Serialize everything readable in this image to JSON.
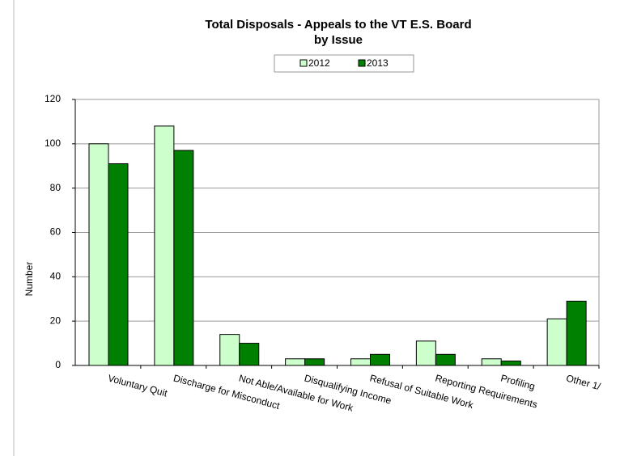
{
  "chart_data": {
    "type": "bar",
    "title": "Total Disposals -  Appeals to the VT E.S. Board",
    "subtitle": "by Issue",
    "y_label": "Number",
    "categories": [
      "Voluntary Quit",
      "Discharge for Misconduct",
      "Not Able/Available for Work",
      "Disqualifying Income",
      "Refusal of Suitable Work",
      "Reporting Requirements",
      "Profiling",
      "Other 1/"
    ],
    "series": [
      {
        "name": "2012",
        "color": "#ccffcc",
        "values": [
          100,
          108,
          14,
          3,
          3,
          11,
          3,
          21
        ]
      },
      {
        "name": "2013",
        "color": "#008000",
        "values": [
          91,
          97,
          10,
          3,
          5,
          5,
          2,
          29
        ]
      }
    ],
    "ylim": [
      0,
      120
    ],
    "yticks": [
      0,
      20,
      40,
      60,
      80,
      100,
      120
    ],
    "grid": true,
    "legend": "top"
  }
}
